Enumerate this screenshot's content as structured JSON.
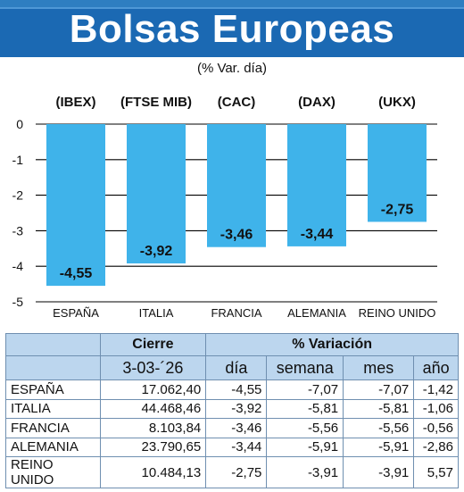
{
  "header": {
    "title": "Bolsas Europeas",
    "subtitle": "(% Var. día)"
  },
  "chart_data": {
    "type": "bar",
    "categories": [
      "ESPAÑA",
      "ITALIA",
      "FRANCIA",
      "ALEMANIA",
      "REINO UNIDO"
    ],
    "index_labels": [
      "(IBEX)",
      "(FTSE MIB)",
      "(CAC)",
      "(DAX)",
      "(UKX)"
    ],
    "values": [
      -4.55,
      -3.92,
      -3.46,
      -3.44,
      -2.75
    ],
    "value_labels": [
      "-4,55",
      "-3,92",
      "-3,46",
      "-3,44",
      "-2,75"
    ],
    "yticks": [
      "0",
      "-1",
      "-2",
      "-3",
      "-4",
      "-5"
    ],
    "ylim": [
      -5,
      0
    ],
    "grid": true,
    "bar_color": "#3fb3ea"
  },
  "table": {
    "group_headers": {
      "cierre": "Cierre",
      "variacion": "% Variación"
    },
    "date": "3-03-´26",
    "columns": {
      "dia": "día",
      "semana": "semana",
      "mes": "mes",
      "ano": "año"
    },
    "rows": [
      {
        "pais": "ESPAÑA",
        "cierre": "17.062,40",
        "dia": "-4,55",
        "semana": "-7,07",
        "mes": "-7,07",
        "ano": "-1,42"
      },
      {
        "pais": "ITALIA",
        "cierre": "44.468,46",
        "dia": "-3,92",
        "semana": "-5,81",
        "mes": "-5,81",
        "ano": "-1,06"
      },
      {
        "pais": "FRANCIA",
        "cierre": "8.103,84",
        "dia": "-3,46",
        "semana": "-5,56",
        "mes": "-5,56",
        "ano": "-0,56"
      },
      {
        "pais": "ALEMANIA",
        "cierre": "23.790,65",
        "dia": "-3,44",
        "semana": "-5,91",
        "mes": "-5,91",
        "ano": "-2,86"
      },
      {
        "pais": "REINO UNIDO",
        "cierre": "10.484,13",
        "dia": "-2,75",
        "semana": "-3,91",
        "mes": "-3,91",
        "ano": "5,57"
      }
    ]
  },
  "colors": {
    "banner": "#1b69b3",
    "table_header": "#bcd6ee"
  }
}
